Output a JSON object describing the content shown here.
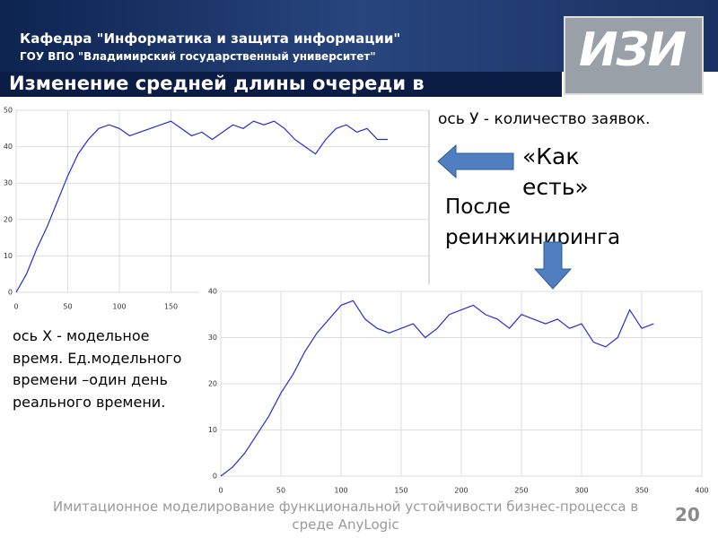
{
  "header": {
    "department": "Кафедра \"Информатика и защита информации\"",
    "university": "ГОУ ВПО \"Владимирский государственный университет\"",
    "logo": "ИЗИ",
    "title": "Изменение средней длины очереди в"
  },
  "notes": {
    "y_axis": "ось У -  количество заявок.",
    "as_is": "«Как есть»",
    "after": "После реинжиниринга",
    "x_axis": "ось Х - модельное время. Ед.модельного времени –один день реального времени."
  },
  "footer": {
    "text": "Имитационное моделирование функциональной устойчивости бизнес-процесса в среде AnyLogic",
    "page": "20"
  },
  "chart_data": [
    {
      "type": "line",
      "color": "#2a2ad8",
      "x": [
        0,
        10,
        20,
        30,
        40,
        50,
        60,
        70,
        80,
        90,
        100,
        110,
        120,
        130,
        140,
        150,
        160,
        170,
        180,
        190,
        200,
        210,
        220,
        230,
        240,
        250,
        260,
        270,
        280,
        290,
        300,
        310,
        320,
        330,
        340,
        350,
        360
      ],
      "values": [
        0,
        5,
        12,
        18,
        25,
        32,
        38,
        42,
        45,
        46,
        45,
        43,
        44,
        45,
        46,
        47,
        45,
        43,
        44,
        42,
        44,
        46,
        45,
        47,
        46,
        47,
        45,
        42,
        40,
        38,
        42,
        45,
        46,
        44,
        45,
        42,
        42
      ],
      "xlim": [
        0,
        400
      ],
      "xticks": [
        0,
        50,
        100,
        150
      ],
      "ylim": [
        0,
        50
      ],
      "yticks": [
        0,
        10,
        20,
        30,
        40,
        50
      ],
      "grid": true
    },
    {
      "type": "line",
      "color": "#2a2ad8",
      "x": [
        0,
        10,
        20,
        30,
        40,
        50,
        60,
        70,
        80,
        90,
        100,
        110,
        120,
        130,
        140,
        150,
        160,
        170,
        180,
        190,
        200,
        210,
        220,
        230,
        240,
        250,
        260,
        270,
        280,
        290,
        300,
        310,
        320,
        330,
        340,
        350,
        360
      ],
      "values": [
        0,
        2,
        5,
        9,
        13,
        18,
        22,
        27,
        31,
        34,
        37,
        38,
        34,
        32,
        31,
        32,
        33,
        30,
        32,
        35,
        36,
        37,
        35,
        34,
        32,
        35,
        34,
        33,
        34,
        32,
        33,
        29,
        28,
        30,
        36,
        32,
        33
      ],
      "xlim": [
        0,
        400
      ],
      "xticks": [
        0,
        50,
        100,
        150,
        200,
        250,
        300,
        350,
        400
      ],
      "ylim": [
        0,
        40
      ],
      "yticks": [
        0,
        10,
        20,
        30,
        40
      ],
      "grid": true
    }
  ]
}
